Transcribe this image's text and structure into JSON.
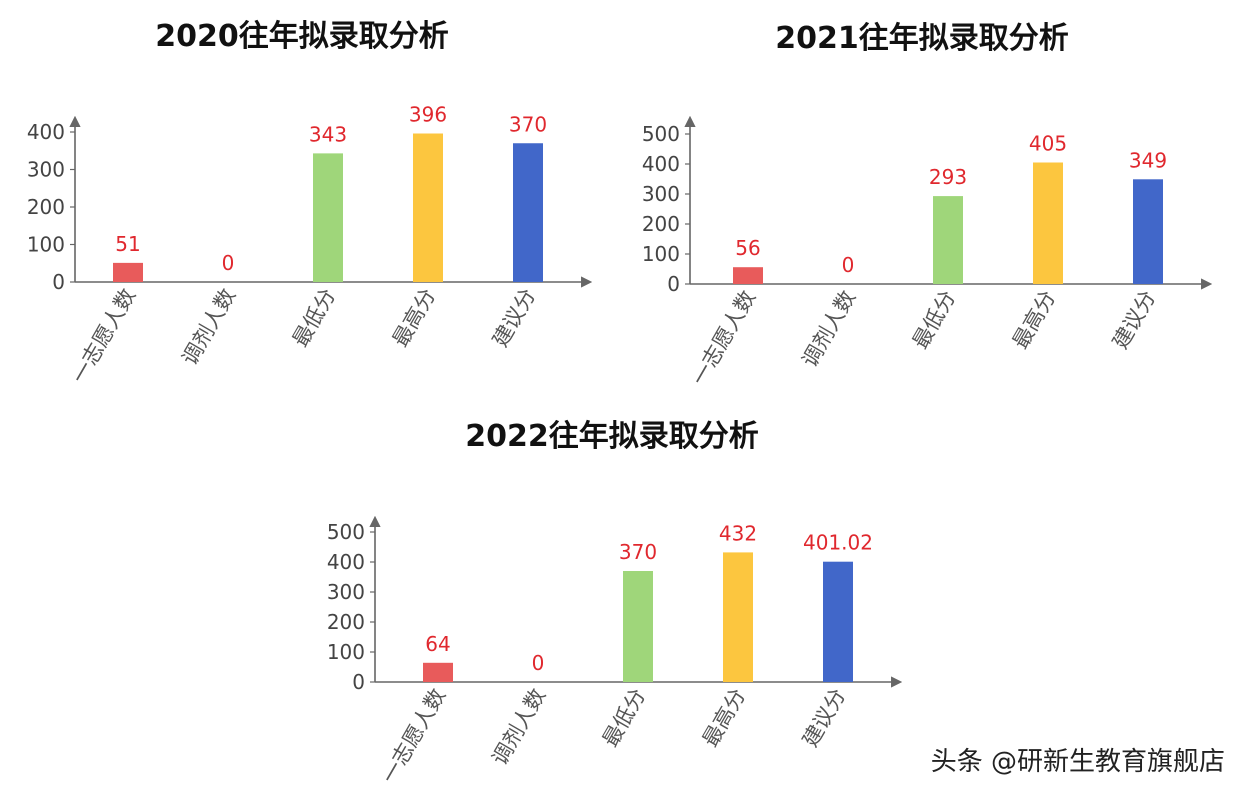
{
  "chart_data": [
    {
      "type": "bar",
      "title": "2020往年拟录取分析",
      "categories": [
        "一志愿人数",
        "调剂人数",
        "最低分",
        "最高分",
        "建议分"
      ],
      "values": [
        51,
        0,
        343,
        396,
        370
      ],
      "value_labels": [
        "51",
        "0",
        "343",
        "396",
        "370"
      ],
      "yticks": [
        0,
        100,
        200,
        300,
        400
      ],
      "ylim": [
        0,
        420
      ],
      "colors": [
        "#e85b5b",
        "#e85b5b",
        "#9fd67a",
        "#fcc63f",
        "#4167c9"
      ],
      "grid": false,
      "legend": "none"
    },
    {
      "type": "bar",
      "title": "2021往年拟录取分析",
      "categories": [
        "一志愿人数",
        "调剂人数",
        "最低分",
        "最高分",
        "建议分"
      ],
      "values": [
        56,
        0,
        293,
        405,
        349
      ],
      "value_labels": [
        "56",
        "0",
        "293",
        "405",
        "349"
      ],
      "yticks": [
        0,
        100,
        200,
        300,
        400,
        500
      ],
      "ylim": [
        0,
        520
      ],
      "colors": [
        "#e85b5b",
        "#e85b5b",
        "#9fd67a",
        "#fcc63f",
        "#4167c9"
      ],
      "grid": false,
      "legend": "none"
    },
    {
      "type": "bar",
      "title": "2022往年拟录取分析",
      "categories": [
        "一志愿人数",
        "调剂人数",
        "最低分",
        "最高分",
        "建议分"
      ],
      "values": [
        64,
        0,
        370,
        432,
        401.02
      ],
      "value_labels": [
        "64",
        "0",
        "370",
        "432",
        "401.02"
      ],
      "yticks": [
        0,
        100,
        200,
        300,
        400,
        500
      ],
      "ylim": [
        0,
        520
      ],
      "colors": [
        "#e85b5b",
        "#e85b5b",
        "#9fd67a",
        "#fcc63f",
        "#4167c9"
      ],
      "grid": false,
      "legend": "none"
    }
  ],
  "watermark": "头条 @研新生教育旗舰店"
}
